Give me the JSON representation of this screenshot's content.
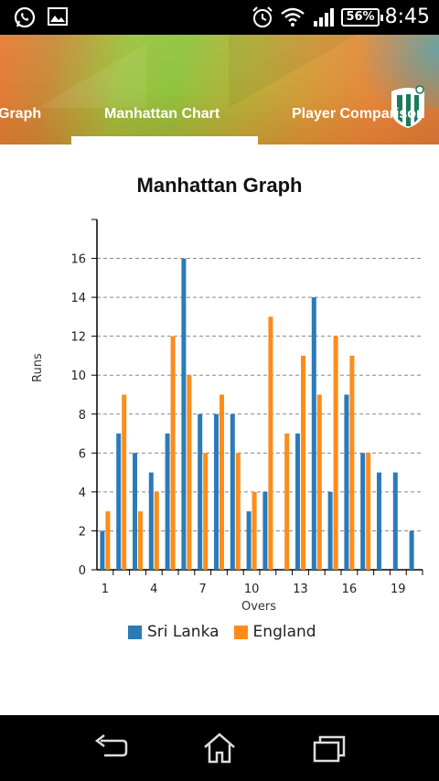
{
  "status_bar": {
    "time": "8:45",
    "battery": "56%",
    "icons": [
      "whatsapp-icon",
      "image-icon",
      "alarm-icon",
      "wifi-icon",
      "signal-icon"
    ]
  },
  "tabs": [
    {
      "label": "Graph"
    },
    {
      "label": "Manhattan Chart"
    },
    {
      "label": "Player Comparison"
    }
  ],
  "selected_tab": "Manhattan Chart",
  "colors": {
    "series1": "#2b7bb9",
    "series2": "#ff8c1a",
    "grid": "#888888"
  },
  "chart_data": {
    "type": "bar",
    "title": "Manhattan Graph",
    "xlabel": "Overs",
    "ylabel": "Runs",
    "ylim": [
      0,
      18
    ],
    "yticks": [
      0,
      2,
      4,
      6,
      8,
      10,
      12,
      14,
      16
    ],
    "xticks": [
      1,
      4,
      7,
      10,
      13,
      16,
      19
    ],
    "categories": [
      1,
      2,
      3,
      4,
      5,
      6,
      7,
      8,
      9,
      10,
      11,
      12,
      13,
      14,
      15,
      16,
      17,
      18,
      19,
      20
    ],
    "series": [
      {
        "name": "Sri Lanka",
        "values": [
          2,
          7,
          6,
          5,
          7,
          16,
          8,
          8,
          8,
          3,
          4,
          null,
          7,
          14,
          4,
          9,
          6,
          5,
          5,
          2
        ]
      },
      {
        "name": "England",
        "values": [
          3,
          9,
          3,
          4,
          12,
          10,
          6,
          9,
          6,
          4,
          13,
          7,
          11,
          9,
          12,
          11,
          6,
          null,
          null,
          null
        ]
      }
    ],
    "legend_position": "bottom",
    "grid": "horizontal dashed"
  },
  "nav": {
    "icons": [
      "back-icon",
      "home-icon",
      "recent-apps-icon"
    ]
  }
}
